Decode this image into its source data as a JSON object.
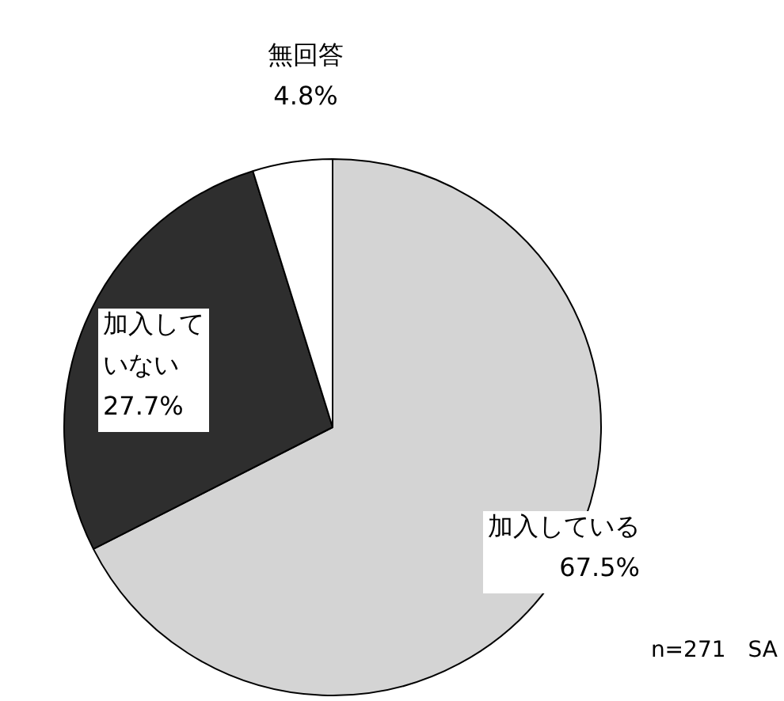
{
  "chart_data": {
    "type": "pie",
    "categories": [
      "加入している",
      "加入していない",
      "無回答"
    ],
    "values": [
      67.5,
      27.7,
      4.8
    ],
    "value_labels": [
      "67.5%",
      "27.7%",
      "4.8%"
    ],
    "colors": [
      "#d4d4d4",
      "#2e2e2e",
      "#ffffff"
    ],
    "legend": false,
    "annotations": [
      "n=271　SA"
    ]
  }
}
